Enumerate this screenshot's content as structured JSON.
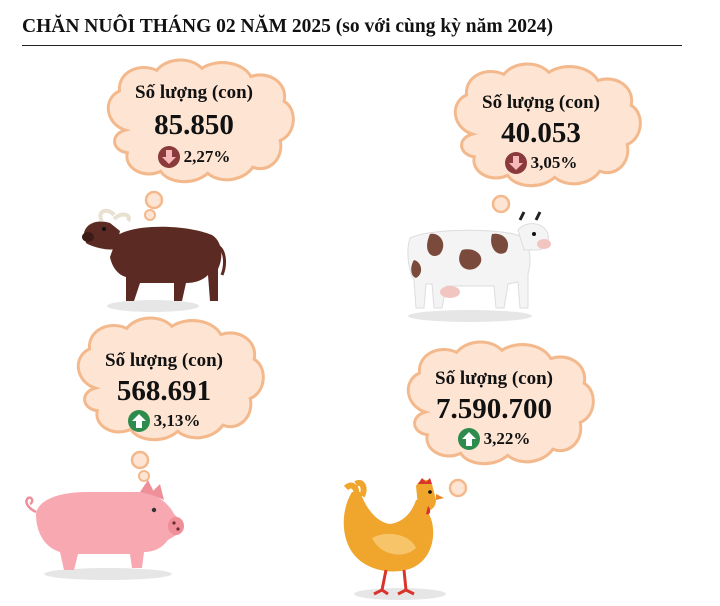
{
  "title": "CHĂN NUÔI THÁNG 02 NĂM 2025 (so với cùng kỳ năm 2024)",
  "colors": {
    "cloud_fill": "#fde4d3",
    "cloud_stroke": "#f3b98c",
    "down_arrow_bg": "#8a3a3a",
    "up_arrow_bg": "#2e8b4e"
  },
  "items": [
    {
      "animal": "buffalo",
      "icon": "buffalo-icon",
      "label": "Số lượng (con)",
      "value": "85.850",
      "trend": "down",
      "trend_icon": "down-arrow-icon",
      "change": "2,27%"
    },
    {
      "animal": "cow",
      "icon": "cow-icon",
      "label": "Số lượng (con)",
      "value": "40.053",
      "trend": "down",
      "trend_icon": "down-arrow-icon",
      "change": "3,05%"
    },
    {
      "animal": "pig",
      "icon": "pig-icon",
      "label": "Số lượng (con)",
      "value": "568.691",
      "trend": "up",
      "trend_icon": "up-arrow-icon",
      "change": "3,13%"
    },
    {
      "animal": "chicken",
      "icon": "chicken-icon",
      "label": "Số lượng (con)",
      "value": "7.590.700",
      "trend": "up",
      "trend_icon": "up-arrow-icon",
      "change": "3,22%"
    }
  ]
}
